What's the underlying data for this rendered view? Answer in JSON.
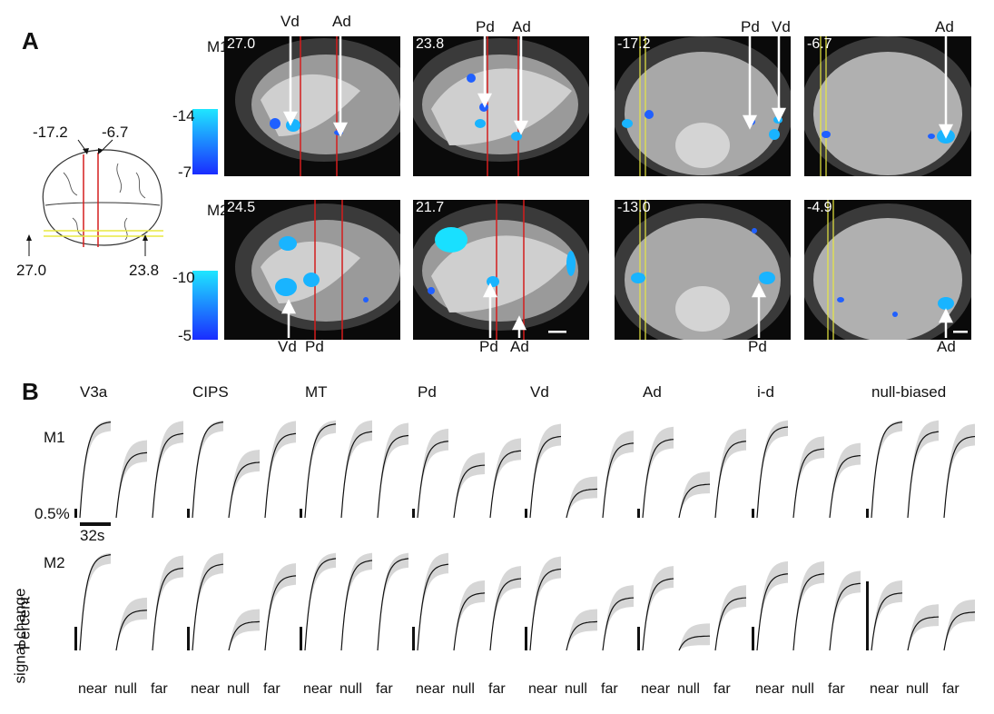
{
  "panel_a": {
    "letter": "A",
    "row_labels": [
      "M1",
      "M2"
    ],
    "brain_schematic": {
      "coronal_numbers": [
        "-17.2",
        "-6.7"
      ],
      "sagittal_numbers": [
        "27.0",
        "23.8"
      ]
    },
    "colorbar_m1": {
      "top": "-14",
      "bottom": "-7"
    },
    "colorbar_m2": {
      "top": "-10",
      "bottom": "-5"
    },
    "slices_m1": [
      {
        "num": "27.0",
        "labels": [
          "Vd",
          "Ad"
        ]
      },
      {
        "num": "23.8",
        "labels": [
          "Pd",
          "Ad"
        ]
      },
      {
        "num": "-17.2",
        "labels": [
          "Pd",
          "Vd"
        ]
      },
      {
        "num": "-6.7",
        "labels": [
          "Ad"
        ]
      }
    ],
    "slices_m2": [
      {
        "num": "24.5",
        "labels": [
          "Vd",
          "Pd"
        ]
      },
      {
        "num": "21.7",
        "labels": [
          "Pd",
          "Ad"
        ]
      },
      {
        "num": "-13.0",
        "labels": [
          "Pd"
        ]
      },
      {
        "num": "-4.9",
        "labels": [
          "Ad"
        ]
      }
    ]
  },
  "panel_b": {
    "letter": "B",
    "row_labels": [
      "M1",
      "M2"
    ],
    "scale_y": "0.5%",
    "scale_x": "32s",
    "ylabel_line1": "Percent",
    "ylabel_line2": "signal change",
    "x_ticks": [
      "near",
      "null",
      "far"
    ],
    "region_titles": [
      "V3a",
      "CIPS",
      "MT",
      "Pd",
      "Vd",
      "Ad",
      "i-d",
      "null-biased"
    ]
  },
  "chart_data": {
    "type": "line",
    "conditions": [
      "near",
      "null",
      "far"
    ],
    "note_units": "peak percent signal change (approximate, relative scale)",
    "series": [
      {
        "name": "V3a",
        "M1": [
          1.0,
          0.68,
          0.88
        ],
        "M2": [
          1.0,
          0.42,
          0.86
        ]
      },
      {
        "name": "CIPS",
        "M1": [
          1.0,
          0.58,
          0.88
        ],
        "M2": [
          0.9,
          0.3,
          0.78
        ]
      },
      {
        "name": "MT",
        "M1": [
          0.98,
          0.9,
          0.86
        ],
        "M2": [
          0.96,
          0.94,
          0.96
        ]
      },
      {
        "name": "Pd",
        "M1": [
          0.8,
          0.55,
          0.7
        ],
        "M2": [
          0.9,
          0.6,
          0.75
        ]
      },
      {
        "name": "Vd",
        "M1": [
          0.85,
          0.3,
          0.78
        ],
        "M2": [
          0.85,
          0.3,
          0.55
        ]
      },
      {
        "name": "Ad",
        "M1": [
          0.82,
          0.35,
          0.8
        ],
        "M2": [
          0.75,
          0.15,
          0.55
        ]
      },
      {
        "name": "i-d",
        "M1": [
          0.95,
          0.72,
          0.65
        ],
        "M2": [
          0.8,
          0.8,
          0.7
        ]
      },
      {
        "name": "null-biased",
        "M1": [
          1.0,
          0.9,
          0.85
        ],
        "M2": [
          0.6,
          0.35,
          0.4
        ]
      }
    ]
  }
}
